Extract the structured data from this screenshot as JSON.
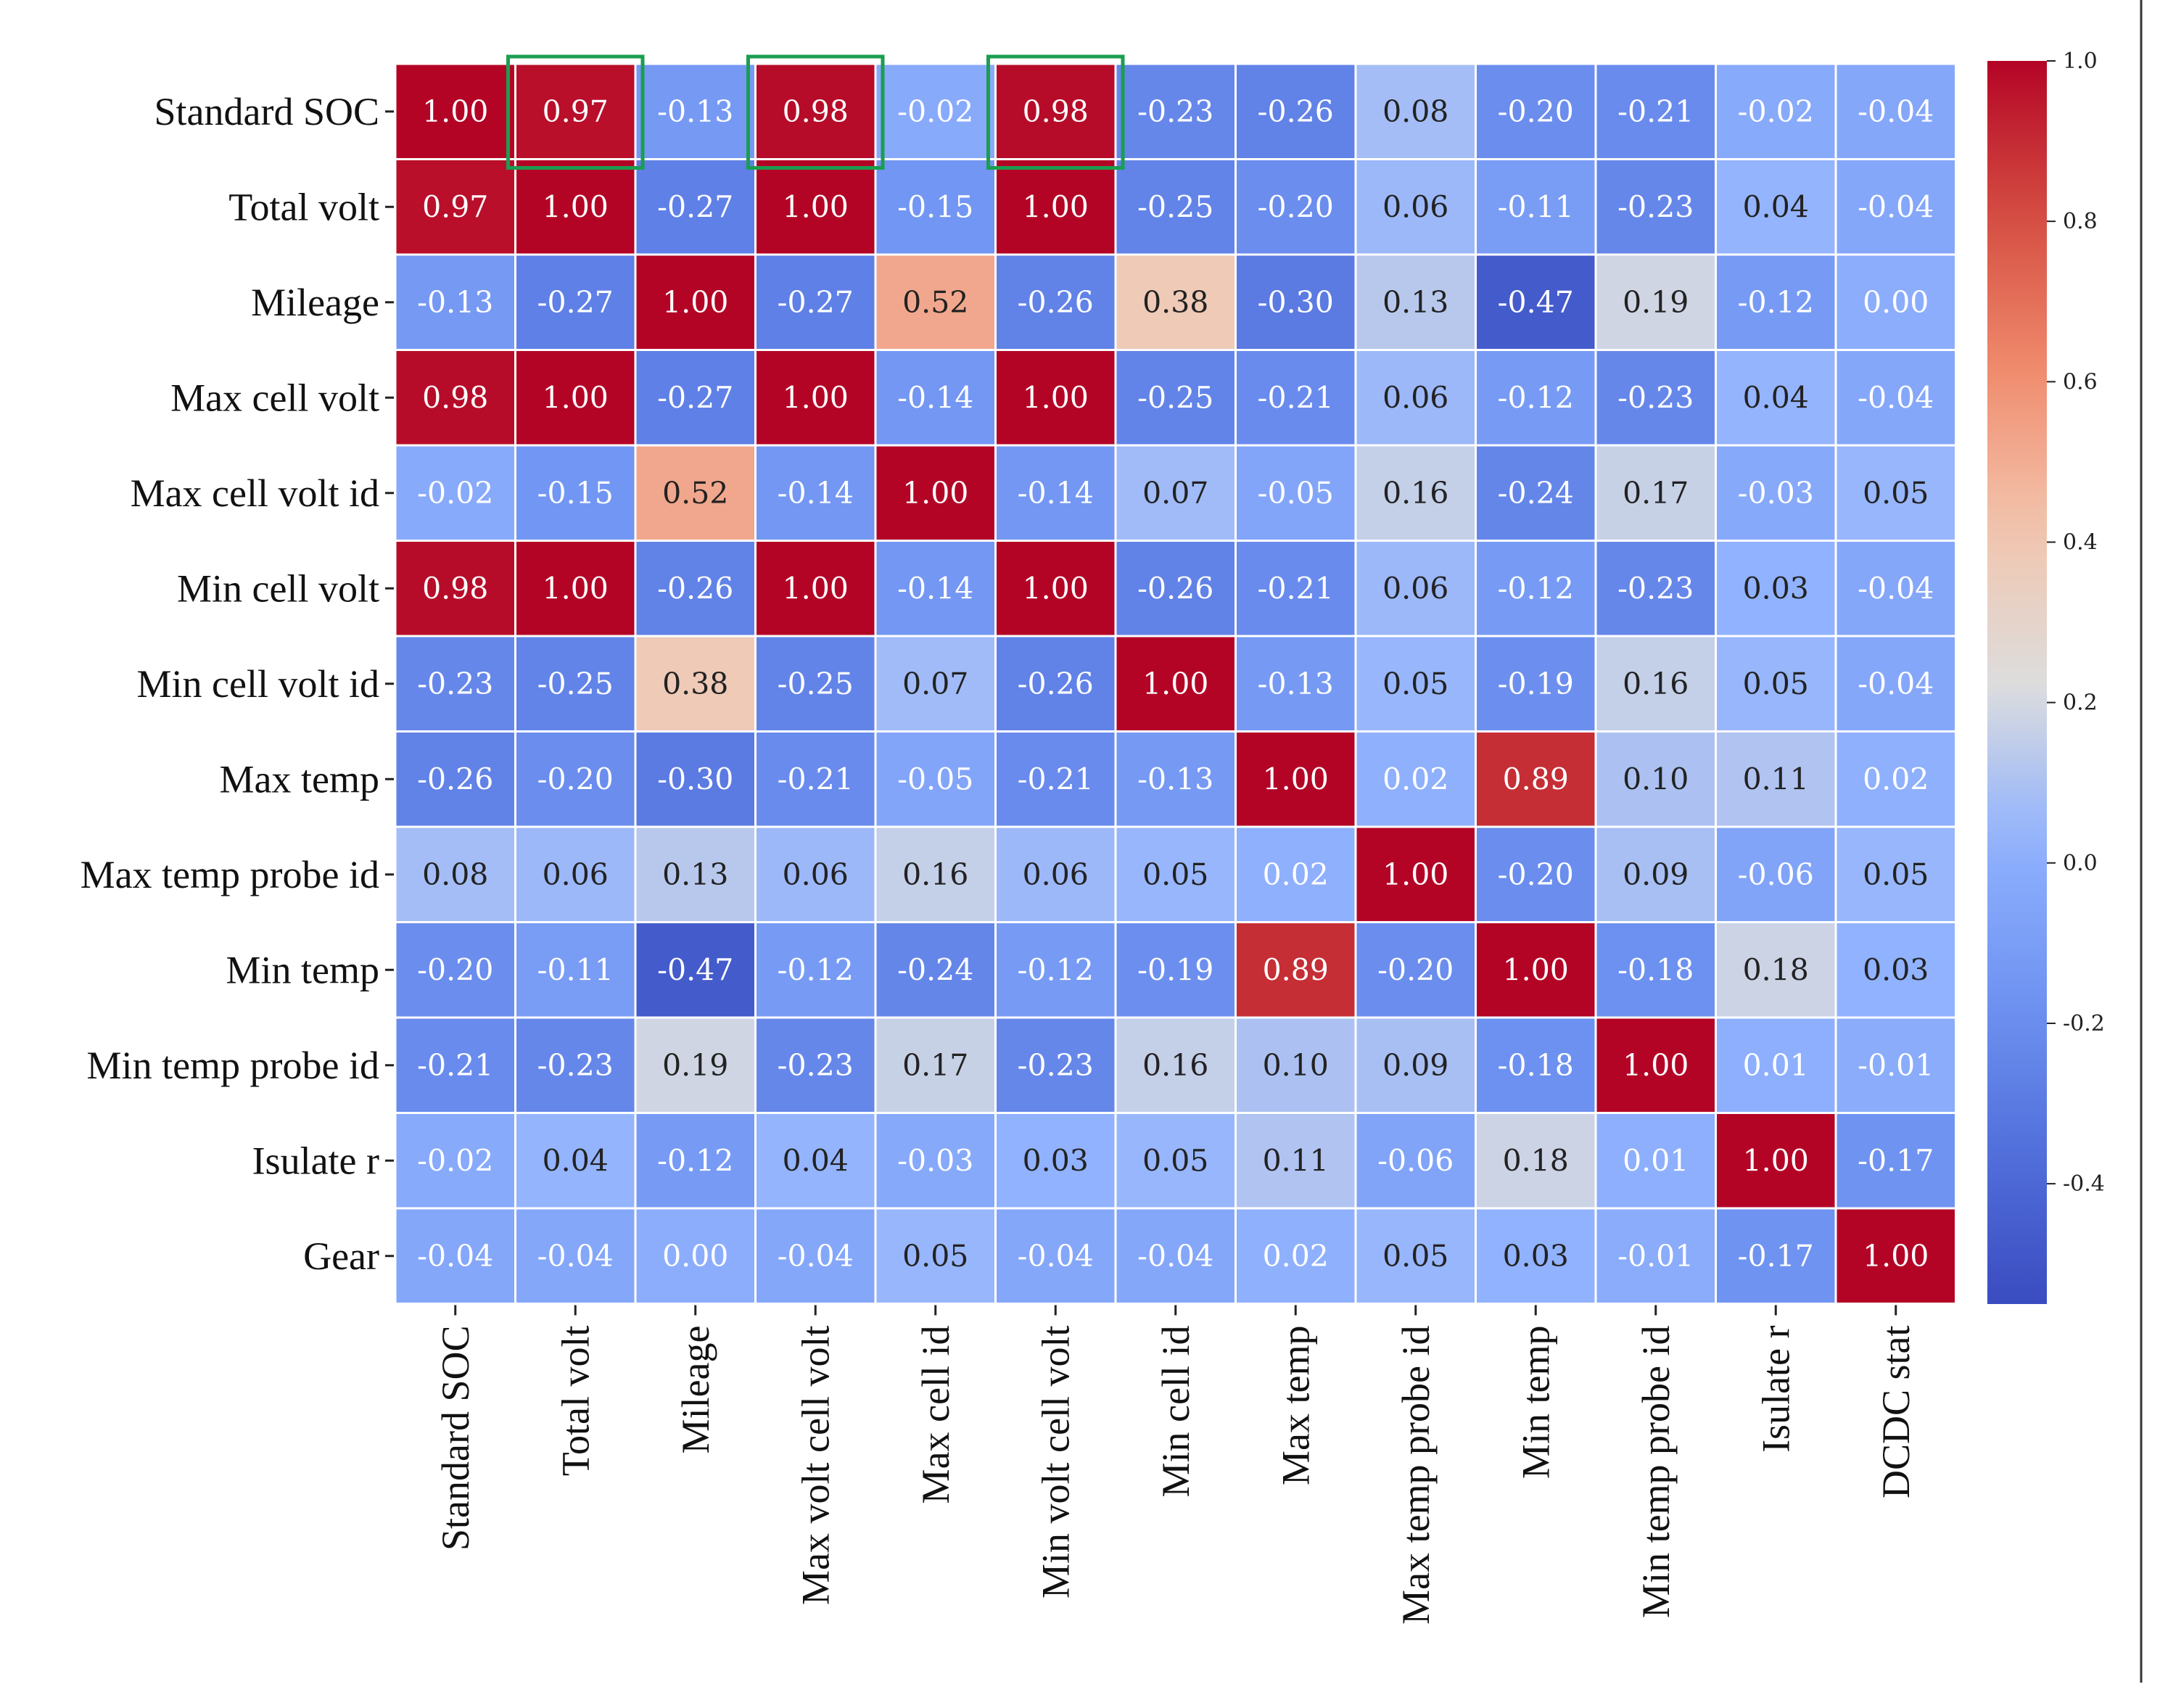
{
  "chart_data": {
    "type": "heatmap",
    "title": "",
    "row_labels": [
      "Standard SOC",
      "Total volt",
      "Mileage",
      "Max cell volt",
      "Max cell volt id",
      "Min cell volt",
      "Min cell volt id",
      "Max temp",
      "Max temp probe id",
      "Min temp",
      "Min temp probe id",
      "Isulate r",
      "Gear"
    ],
    "col_labels": [
      "Standard SOC",
      "Total volt",
      "Mileage",
      "Max volt cell volt",
      "Max cell id",
      "Min volt cell volt",
      "Min cell id",
      "Max temp",
      "Max temp probe id",
      "Min temp",
      "Min temp probe id",
      "Isulate r",
      "DCDC stat"
    ],
    "values": [
      [
        1.0,
        0.97,
        -0.13,
        0.98,
        -0.02,
        0.98,
        -0.23,
        -0.26,
        0.08,
        -0.2,
        -0.21,
        -0.02,
        -0.04
      ],
      [
        0.97,
        1.0,
        -0.27,
        1.0,
        -0.15,
        1.0,
        -0.25,
        -0.2,
        0.06,
        -0.11,
        -0.23,
        0.04,
        -0.04
      ],
      [
        -0.13,
        -0.27,
        1.0,
        -0.27,
        0.52,
        -0.26,
        0.38,
        -0.3,
        0.13,
        -0.47,
        0.19,
        -0.12,
        0.0
      ],
      [
        0.98,
        1.0,
        -0.27,
        1.0,
        -0.14,
        1.0,
        -0.25,
        -0.21,
        0.06,
        -0.12,
        -0.23,
        0.04,
        -0.04
      ],
      [
        -0.02,
        -0.15,
        0.52,
        -0.14,
        1.0,
        -0.14,
        0.07,
        -0.05,
        0.16,
        -0.24,
        0.17,
        -0.03,
        0.05
      ],
      [
        0.98,
        1.0,
        -0.26,
        1.0,
        -0.14,
        1.0,
        -0.26,
        -0.21,
        0.06,
        -0.12,
        -0.23,
        0.03,
        -0.04
      ],
      [
        -0.23,
        -0.25,
        0.38,
        -0.25,
        0.07,
        -0.26,
        1.0,
        -0.13,
        0.05,
        -0.19,
        0.16,
        0.05,
        -0.04
      ],
      [
        -0.26,
        -0.2,
        -0.3,
        -0.21,
        -0.05,
        -0.21,
        -0.13,
        1.0,
        0.02,
        0.89,
        0.1,
        0.11,
        0.02
      ],
      [
        0.08,
        0.06,
        0.13,
        0.06,
        0.16,
        0.06,
        0.05,
        0.02,
        1.0,
        -0.2,
        0.09,
        -0.06,
        0.05
      ],
      [
        -0.2,
        -0.11,
        -0.47,
        -0.12,
        -0.24,
        -0.12,
        -0.19,
        0.89,
        -0.2,
        1.0,
        -0.18,
        0.18,
        0.03
      ],
      [
        -0.21,
        -0.23,
        0.19,
        -0.23,
        0.17,
        -0.23,
        0.16,
        0.1,
        0.09,
        -0.18,
        1.0,
        0.01,
        -0.01
      ],
      [
        -0.02,
        0.04,
        -0.12,
        0.04,
        -0.03,
        0.03,
        0.05,
        0.11,
        -0.06,
        0.18,
        0.01,
        1.0,
        -0.17
      ],
      [
        -0.04,
        -0.04,
        0.0,
        -0.04,
        0.05,
        -0.04,
        -0.04,
        0.02,
        0.05,
        0.03,
        -0.01,
        -0.17,
        1.0
      ]
    ],
    "colormap": "coolwarm",
    "color_range": [
      -0.55,
      1.0
    ],
    "colorbar_ticks": [
      "1.0",
      "0.8",
      "0.6",
      "0.4",
      "0.2",
      "0.0",
      "-0.2",
      "-0.4"
    ],
    "colorbar_tick_values": [
      1.0,
      0.8,
      0.6,
      0.4,
      0.2,
      0.0,
      -0.2,
      -0.4
    ],
    "highlight_boxes": [
      {
        "row": 0,
        "col": 1
      },
      {
        "row": 0,
        "col": 3
      },
      {
        "row": 0,
        "col": 5
      }
    ],
    "highlight_color": "#1a9e50"
  }
}
